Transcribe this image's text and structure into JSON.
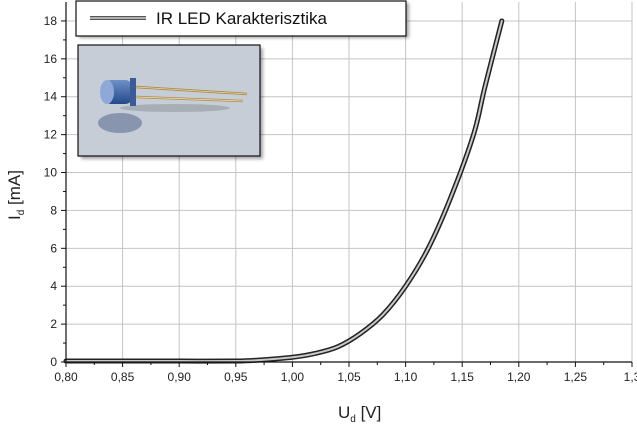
{
  "chart_data": {
    "type": "line",
    "legend": {
      "label": "IR LED Karakterisztika",
      "position": "top-left"
    },
    "xlabel": {
      "main": "U",
      "sub": "d",
      "unit": " [V]"
    },
    "ylabel": {
      "main": "I",
      "sub": "d",
      "unit": " [mA]"
    },
    "xlim": [
      0.8,
      1.3
    ],
    "ylim": [
      0,
      19
    ],
    "x_tick_labels": [
      "0,80",
      "0,85",
      "0,90",
      "0,95",
      "1,00",
      "1,05",
      "1,10",
      "1,15",
      "1,20",
      "1,25",
      "1,3"
    ],
    "y_tick_labels": [
      "0",
      "2",
      "4",
      "6",
      "8",
      "10",
      "12",
      "14",
      "16",
      "18"
    ],
    "grid": true,
    "inset_image": "ir-led-photo",
    "series": [
      {
        "color": "#c8c8c8",
        "x": [
          0.8,
          0.85,
          0.9,
          0.95,
          0.97,
          1.0,
          1.02,
          1.04,
          1.06,
          1.08,
          1.1,
          1.12,
          1.14,
          1.16,
          1.17,
          1.185
        ],
        "y": [
          0.05,
          0.05,
          0.05,
          0.05,
          0.1,
          0.25,
          0.45,
          0.8,
          1.5,
          2.5,
          4.0,
          6.0,
          8.7,
          12.0,
          14.5,
          18.0
        ]
      }
    ]
  }
}
